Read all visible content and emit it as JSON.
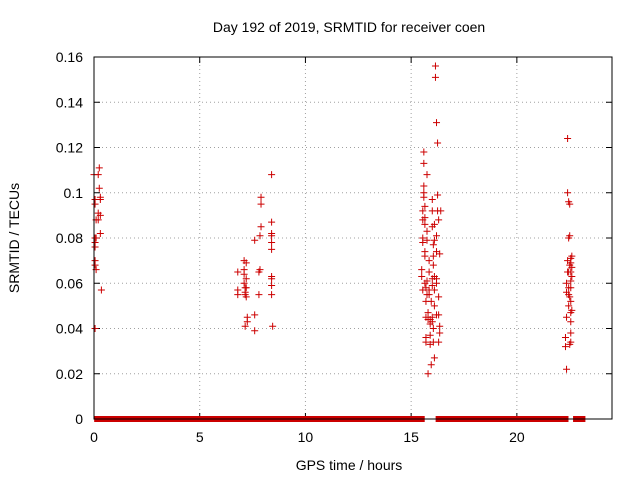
{
  "chart_data": {
    "type": "scatter",
    "title": "Day 192 of 2019, SRMTID for receiver coen",
    "xlabel": "GPS time / hours",
    "ylabel": "SRMTID / TECUs",
    "xlim": [
      0,
      24.5
    ],
    "ylim": [
      0,
      0.16
    ],
    "xticks": [
      0,
      5,
      10,
      15,
      20
    ],
    "yticks": [
      0,
      0.02,
      0.04,
      0.06,
      0.08,
      0.1,
      0.12,
      0.14,
      0.16
    ],
    "xtick_labels": [
      "0",
      "5",
      "10",
      "15",
      "20"
    ],
    "ytick_labels": [
      "0",
      "0.02",
      "0.04",
      "0.06",
      "0.08",
      "0.1",
      "0.12",
      "0.14",
      "0.16"
    ],
    "grid": true,
    "marker": "+",
    "color": "#cc0000",
    "series": [
      {
        "name": "SRMTID",
        "points": [
          [
            0.0,
            0.108
          ],
          [
            0.05,
            0.097
          ],
          [
            0.05,
            0.095
          ],
          [
            0.05,
            0.08
          ],
          [
            0.05,
            0.078
          ],
          [
            0.05,
            0.076
          ],
          [
            0.05,
            0.07
          ],
          [
            0.05,
            0.068
          ],
          [
            0.05,
            0.04
          ],
          [
            0.1,
            0.088
          ],
          [
            0.1,
            0.08
          ],
          [
            0.1,
            0.066
          ],
          [
            0.2,
            0.091
          ],
          [
            0.2,
            0.088
          ],
          [
            0.2,
            0.108
          ],
          [
            0.25,
            0.111
          ],
          [
            0.25,
            0.102
          ],
          [
            0.3,
            0.098
          ],
          [
            0.3,
            0.097
          ],
          [
            0.3,
            0.09
          ],
          [
            0.3,
            0.082
          ],
          [
            0.35,
            0.057
          ],
          [
            6.8,
            0.065
          ],
          [
            6.8,
            0.057
          ],
          [
            6.8,
            0.055
          ],
          [
            7.1,
            0.07
          ],
          [
            7.1,
            0.066
          ],
          [
            7.1,
            0.064
          ],
          [
            7.1,
            0.06
          ],
          [
            7.15,
            0.058
          ],
          [
            7.15,
            0.056
          ],
          [
            7.15,
            0.055
          ],
          [
            7.15,
            0.041
          ],
          [
            7.2,
            0.069
          ],
          [
            7.2,
            0.062
          ],
          [
            7.2,
            0.058
          ],
          [
            7.2,
            0.054
          ],
          [
            7.25,
            0.045
          ],
          [
            7.25,
            0.043
          ],
          [
            7.6,
            0.046
          ],
          [
            7.6,
            0.039
          ],
          [
            7.6,
            0.079
          ],
          [
            7.8,
            0.065
          ],
          [
            7.8,
            0.055
          ],
          [
            7.85,
            0.066
          ],
          [
            7.85,
            0.081
          ],
          [
            7.9,
            0.098
          ],
          [
            7.9,
            0.095
          ],
          [
            7.9,
            0.085
          ],
          [
            8.4,
            0.108
          ],
          [
            8.4,
            0.087
          ],
          [
            8.4,
            0.082
          ],
          [
            8.4,
            0.081
          ],
          [
            8.4,
            0.078
          ],
          [
            8.4,
            0.075
          ],
          [
            8.4,
            0.063
          ],
          [
            8.4,
            0.062
          ],
          [
            8.4,
            0.059
          ],
          [
            8.4,
            0.055
          ],
          [
            8.45,
            0.041
          ],
          [
            15.5,
            0.066
          ],
          [
            15.5,
            0.063
          ],
          [
            15.55,
            0.092
          ],
          [
            15.55,
            0.088
          ],
          [
            15.55,
            0.08
          ],
          [
            15.55,
            0.078
          ],
          [
            15.55,
            0.057
          ],
          [
            15.6,
            0.118
          ],
          [
            15.6,
            0.113
          ],
          [
            15.6,
            0.103
          ],
          [
            15.6,
            0.1
          ],
          [
            15.6,
            0.098
          ],
          [
            15.65,
            0.094
          ],
          [
            15.65,
            0.089
          ],
          [
            15.65,
            0.086
          ],
          [
            15.65,
            0.074
          ],
          [
            15.65,
            0.072
          ],
          [
            15.65,
            0.06
          ],
          [
            15.7,
            0.058
          ],
          [
            15.7,
            0.052
          ],
          [
            15.7,
            0.045
          ],
          [
            15.7,
            0.036
          ],
          [
            15.7,
            0.034
          ],
          [
            15.75,
            0.108
          ],
          [
            15.75,
            0.083
          ],
          [
            15.75,
            0.079
          ],
          [
            15.75,
            0.061
          ],
          [
            15.75,
            0.055
          ],
          [
            15.8,
            0.047
          ],
          [
            15.8,
            0.044
          ],
          [
            15.8,
            0.02
          ],
          [
            15.85,
            0.07
          ],
          [
            15.85,
            0.065
          ],
          [
            15.85,
            0.057
          ],
          [
            15.85,
            0.055
          ],
          [
            15.9,
            0.044
          ],
          [
            15.9,
            0.042
          ],
          [
            15.9,
            0.037
          ],
          [
            15.9,
            0.033
          ],
          [
            15.95,
            0.024
          ],
          [
            15.95,
            0.052
          ],
          [
            16.0,
            0.097
          ],
          [
            16.0,
            0.092
          ],
          [
            16.0,
            0.085
          ],
          [
            16.0,
            0.062
          ],
          [
            16.0,
            0.059
          ],
          [
            16.0,
            0.045
          ],
          [
            16.0,
            0.043
          ],
          [
            16.05,
            0.077
          ],
          [
            16.05,
            0.072
          ],
          [
            16.05,
            0.068
          ],
          [
            16.05,
            0.04
          ],
          [
            16.05,
            0.034
          ],
          [
            16.1,
            0.086
          ],
          [
            16.1,
            0.079
          ],
          [
            16.1,
            0.063
          ],
          [
            16.1,
            0.057
          ],
          [
            16.1,
            0.05
          ],
          [
            16.1,
            0.027
          ],
          [
            16.15,
            0.156
          ],
          [
            16.15,
            0.151
          ],
          [
            16.2,
            0.131
          ],
          [
            16.2,
            0.081
          ],
          [
            16.2,
            0.074
          ],
          [
            16.2,
            0.062
          ],
          [
            16.2,
            0.06
          ],
          [
            16.2,
            0.046
          ],
          [
            16.25,
            0.122
          ],
          [
            16.25,
            0.099
          ],
          [
            16.25,
            0.092
          ],
          [
            16.3,
            0.088
          ],
          [
            16.3,
            0.054
          ],
          [
            16.3,
            0.046
          ],
          [
            16.3,
            0.034
          ],
          [
            16.35,
            0.073
          ],
          [
            16.35,
            0.041
          ],
          [
            16.35,
            0.038
          ],
          [
            16.4,
            0.092
          ],
          [
            22.3,
            0.032
          ],
          [
            22.3,
            0.036
          ],
          [
            22.35,
            0.022
          ],
          [
            22.35,
            0.045
          ],
          [
            22.35,
            0.056
          ],
          [
            22.35,
            0.06
          ],
          [
            22.4,
            0.124
          ],
          [
            22.4,
            0.1
          ],
          [
            22.4,
            0.07
          ],
          [
            22.4,
            0.065
          ],
          [
            22.45,
            0.096
          ],
          [
            22.45,
            0.08
          ],
          [
            22.45,
            0.065
          ],
          [
            22.45,
            0.058
          ],
          [
            22.45,
            0.055
          ],
          [
            22.45,
            0.05
          ],
          [
            22.5,
            0.095
          ],
          [
            22.5,
            0.081
          ],
          [
            22.5,
            0.068
          ],
          [
            22.5,
            0.054
          ],
          [
            22.5,
            0.033
          ],
          [
            22.55,
            0.071
          ],
          [
            22.55,
            0.069
          ],
          [
            22.55,
            0.065
          ],
          [
            22.55,
            0.061
          ],
          [
            22.55,
            0.058
          ],
          [
            22.55,
            0.052
          ],
          [
            22.55,
            0.047
          ],
          [
            22.55,
            0.043
          ],
          [
            22.55,
            0.038
          ],
          [
            22.55,
            0.034
          ],
          [
            22.6,
            0.072
          ],
          [
            22.6,
            0.067
          ],
          [
            22.6,
            0.063
          ],
          [
            22.6,
            0.048
          ]
        ],
        "baseline_segments": [
          [
            0.15,
            7.2
          ],
          [
            7.4,
            8.05
          ],
          [
            8.3,
            15.5
          ],
          [
            16.3,
            22.3
          ],
          [
            22.8,
            23.1
          ]
        ],
        "baseline_value": 0
      }
    ]
  }
}
